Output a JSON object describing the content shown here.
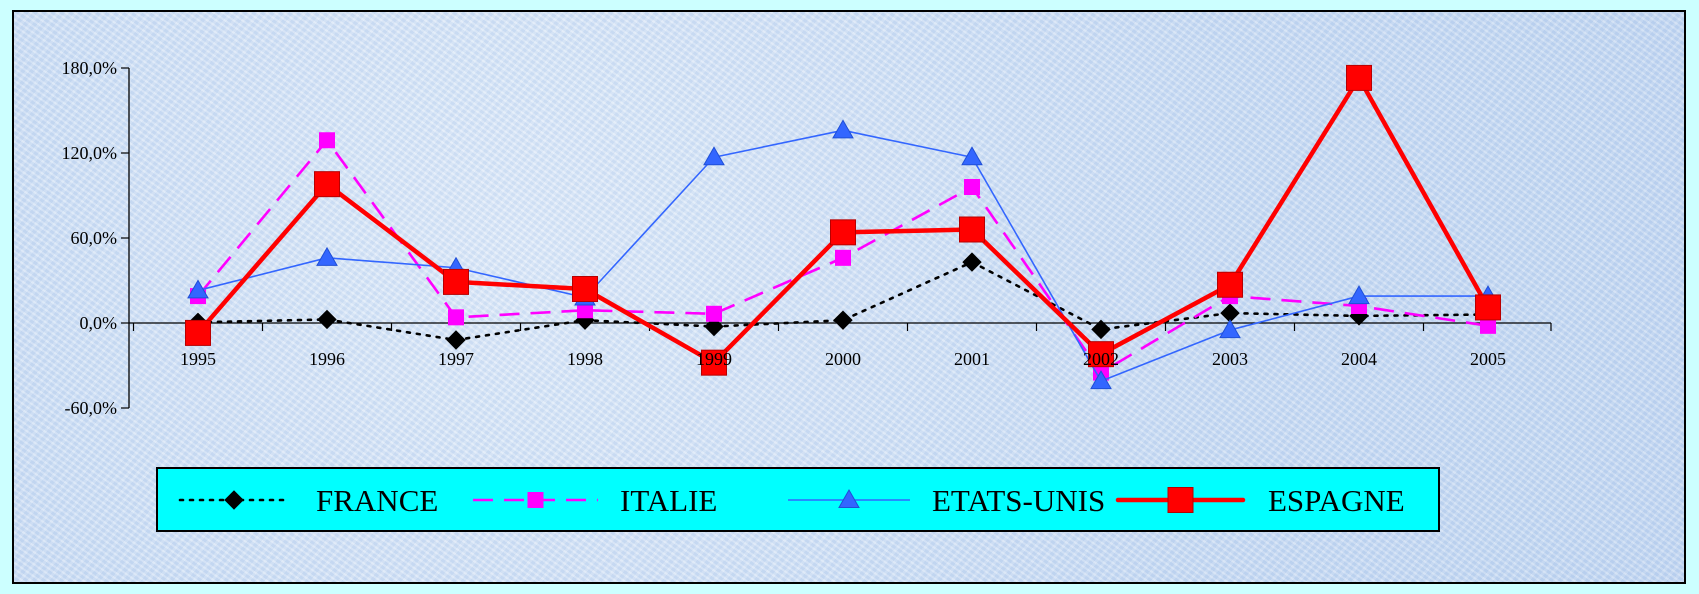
{
  "chart_data": {
    "type": "line",
    "title": "",
    "xlabel": "",
    "ylabel": "",
    "categories": [
      "1995",
      "1996",
      "1997",
      "1998",
      "1999",
      "2000",
      "2001",
      "2002",
      "2003",
      "2004",
      "2005"
    ],
    "y_ticks": [
      "180,0%",
      "120,0%",
      "60,0%",
      "0,0%",
      "-60,0%"
    ],
    "ylim": [
      -60,
      180
    ],
    "grid": false,
    "legend_position": "bottom",
    "series": [
      {
        "name": "FRANCE",
        "color": "#000000",
        "line_style": "dotted",
        "marker": "diamond",
        "values": [
          0.5,
          2.5,
          -12,
          2,
          -2.5,
          2,
          43,
          -4.5,
          7,
          5,
          6
        ]
      },
      {
        "name": "ITALIE",
        "color": "#ff00ff",
        "line_style": "dashed",
        "marker": "square",
        "values": [
          19,
          129,
          4,
          9,
          6.5,
          46,
          96,
          -35,
          19,
          12,
          -2
        ]
      },
      {
        "name": "ETATS-UNIS",
        "color": "#3366ff",
        "line_style": "solid",
        "marker": "triangle",
        "values": [
          23,
          46,
          39,
          18,
          117,
          136,
          117,
          -41,
          -5,
          19,
          19
        ]
      },
      {
        "name": "ESPAGNE",
        "color": "#ff0000",
        "line_style": "solid-thick",
        "marker": "square-large",
        "values": [
          -7,
          98,
          29,
          24,
          -28,
          64,
          66,
          -22,
          27,
          173,
          11
        ]
      }
    ]
  }
}
